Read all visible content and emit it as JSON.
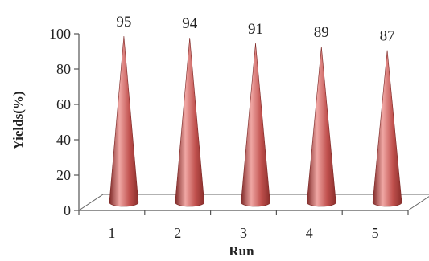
{
  "chart_data": {
    "type": "bar",
    "bar_shape": "cone",
    "categories": [
      "1",
      "2",
      "3",
      "4",
      "5"
    ],
    "values": [
      95,
      94,
      91,
      89,
      87
    ],
    "data_labels": [
      "95",
      "94",
      "91",
      "89",
      "87"
    ],
    "title": "",
    "xlabel": "Run",
    "ylabel": "Yields(%)",
    "ylim": [
      0,
      100
    ],
    "yticks": [
      "0",
      "20",
      "40",
      "60",
      "80",
      "100"
    ],
    "grid": false,
    "legend": "none",
    "colors": {
      "bar": "#c0504d",
      "bar_highlight": "#f0a7a4",
      "bar_shadow": "#7d2826",
      "floor": "#ffffff",
      "axis": "#555555"
    }
  }
}
